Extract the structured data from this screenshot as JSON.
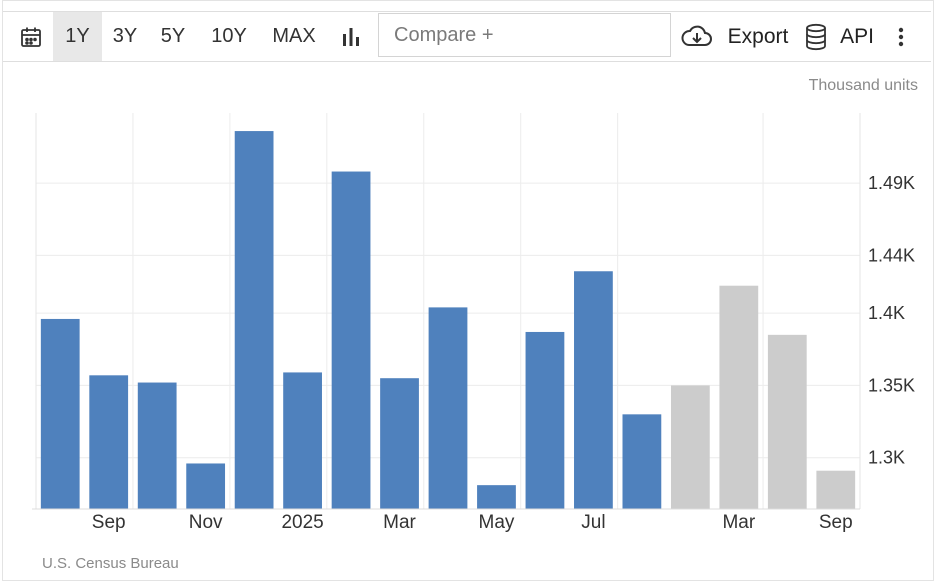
{
  "toolbar": {
    "ranges": [
      "1Y",
      "3Y",
      "5Y",
      "10Y",
      "MAX"
    ],
    "active_range": "1Y",
    "compare_placeholder": "Compare +",
    "export_label": "Export",
    "api_label": "API",
    "icons": [
      "calendar-icon",
      "bar-chart-icon",
      "cloud-download-icon",
      "database-icon",
      "kebab-menu-icon"
    ]
  },
  "units_label": "Thousand units",
  "source_label": "U.S. Census Bureau",
  "colors": {
    "actual": "#4f81bd",
    "forecast": "#cccccc"
  },
  "chart_data": {
    "type": "bar",
    "ylim": [
      1.2645,
      1.5385
    ],
    "yticks": [
      {
        "value": 1.3,
        "label": "1.3K"
      },
      {
        "value": 1.35,
        "label": "1.35K"
      },
      {
        "value": 1.4,
        "label": "1.4K"
      },
      {
        "value": 1.44,
        "label": "1.44K"
      },
      {
        "value": 1.49,
        "label": "1.49K"
      }
    ],
    "xticks": [
      {
        "index": 1,
        "label": "Sep"
      },
      {
        "index": 3,
        "label": "Nov"
      },
      {
        "index": 5,
        "label": "2025"
      },
      {
        "index": 7,
        "label": "Mar"
      },
      {
        "index": 9,
        "label": "May"
      },
      {
        "index": 11,
        "label": "Jul"
      },
      {
        "index": 14,
        "label": "Mar"
      },
      {
        "index": 16,
        "label": "Sep"
      }
    ],
    "series": [
      {
        "values": [
          1.396,
          1.357,
          1.352,
          1.296,
          1.526,
          1.359,
          1.498,
          1.355,
          1.404,
          1.281,
          1.387,
          1.429,
          1.33
        ]
      },
      {
        "values": [
          null,
          null,
          null,
          null,
          null,
          null,
          null,
          null,
          null,
          null,
          null,
          null,
          null,
          1.35,
          1.419,
          1.385,
          1.291
        ]
      }
    ],
    "grid": true,
    "y_axis_side": "right"
  }
}
